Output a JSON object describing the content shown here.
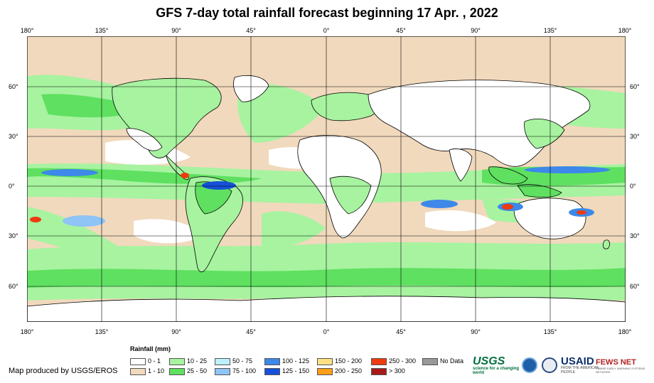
{
  "title": "GFS 7-day total rainfall forecast beginning 17 Apr. , 2022",
  "lon_ticks": [
    "180°",
    "135°",
    "90°",
    "45°",
    "0°",
    "45°",
    "90°",
    "135°",
    "180°"
  ],
  "lat_ticks": [
    "60°",
    "30°",
    "0°",
    "30°",
    "60°"
  ],
  "legend": {
    "title": "Rainfall (mm)",
    "items": [
      {
        "label": "0 - 1",
        "color": "#ffffff"
      },
      {
        "label": "1 - 10",
        "color": "#f1d9bd"
      },
      {
        "label": "10 - 25",
        "color": "#a7f3a0"
      },
      {
        "label": "25 - 50",
        "color": "#5fe060"
      },
      {
        "label": "50 - 75",
        "color": "#bdf0fb"
      },
      {
        "label": "75 - 100",
        "color": "#8ec4f6"
      },
      {
        "label": "100 - 125",
        "color": "#3d88e8"
      },
      {
        "label": "125 - 150",
        "color": "#1550d8"
      },
      {
        "label": "150 - 200",
        "color": "#ffe184"
      },
      {
        "label": "200 - 250",
        "color": "#ff9e1a"
      },
      {
        "label": "250 - 300",
        "color": "#ee3b0f"
      },
      {
        "label": "> 300",
        "color": "#a81a1a"
      },
      {
        "label": "No Data",
        "color": "#999999"
      }
    ]
  },
  "credit": "Map produced by USGS/EROS",
  "logos": {
    "usgs": "USGS",
    "usgs_tagline": "science for a changing world",
    "usaid": "USAID",
    "usaid_tagline": "FROM THE AMERICAN PEOPLE",
    "fews": "FEWS NET",
    "fews_tagline": "FAMINE EARLY WARNING SYSTEMS NETWORK",
    "noaa": "noaa-emblem",
    "seal": "government-seal"
  }
}
